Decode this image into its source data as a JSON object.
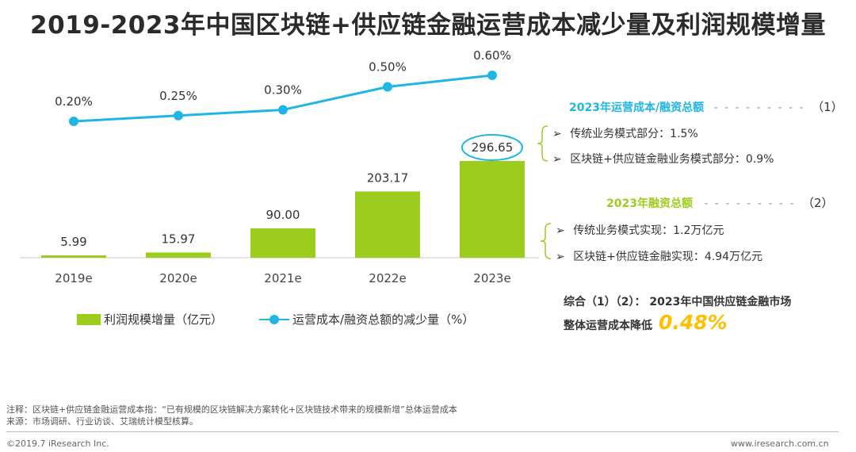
{
  "title": "2019-2023年中国区块链+供应链金融运营成本减少量及利润规模增量",
  "chart_data": {
    "type": "bar+line",
    "categories": [
      "2019e",
      "2020e",
      "2021e",
      "2022e",
      "2023e"
    ],
    "series": [
      {
        "name": "利润规模增量（亿元）",
        "kind": "bar",
        "values": [
          5.99,
          15.97,
          90.0,
          203.17,
          296.65
        ],
        "labels": [
          "5.99",
          "15.97",
          "90.00",
          "203.17",
          "296.65"
        ],
        "color": "#9ccd1e"
      },
      {
        "name": "运营成本/融资总额的减少量（%）",
        "kind": "line",
        "values": [
          0.2,
          0.25,
          0.3,
          0.5,
          0.6
        ],
        "labels": [
          "0.20%",
          "0.25%",
          "0.30%",
          "0.50%",
          "0.60%"
        ],
        "color": "#1fb6e6"
      }
    ],
    "bar_ylim": [
      0,
      296.65
    ],
    "line_ylim": [
      0.2,
      0.6
    ],
    "highlight_label": "296.65"
  },
  "legend": {
    "bar_label": "利润规模增量（亿元）",
    "line_label": "运营成本/融资总额的减少量（%）"
  },
  "panel": {
    "h1": "2023年运营成本/融资总额",
    "h1_num": "（1）",
    "h1_items": [
      "传统业务模式部分：1.5%",
      "区块链+供应链金融业务模式部分：0.9%"
    ],
    "h2": "2023年融资总额",
    "h2_num": "（2）",
    "h2_items": [
      "传统业务模式实现：1.2万亿元",
      "区块链+供应链金融实现：4.94万亿元"
    ],
    "summary_line1": "综合（1）（2）：  2023年中国供应链金融市场",
    "summary_line2": "整体运营成本降低",
    "summary_value": "0.48%",
    "dash": "- - - - - - - - -",
    "arrow": "➢"
  },
  "footer": {
    "note": "注释：区块链+供应链金融运营成本指：“已有规模的区块链解决方案转化+区块链技术带来的规模新增”总体运营成本",
    "source": "来源：市场调研、行业访谈、艾瑞统计模型核算。",
    "copyright": "©2019.7 iResearch Inc.",
    "website": "www.iresearch.com.cn"
  },
  "colors": {
    "bar": "#9ccd1e",
    "line": "#1fb6e6",
    "accent": "#ffc000"
  }
}
